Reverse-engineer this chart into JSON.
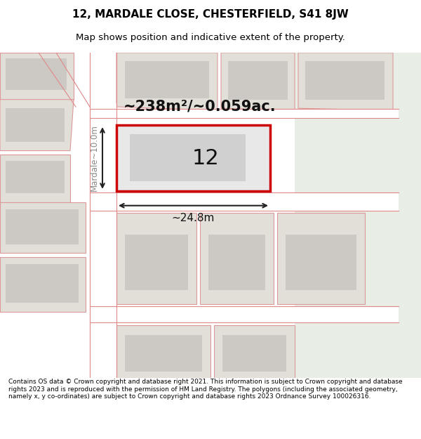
{
  "title_line1": "12, MARDALE CLOSE, CHESTERFIELD, S41 8JW",
  "title_line2": "Map shows position and indicative extent of the property.",
  "footer_text": "Contains OS data © Crown copyright and database right 2021. This information is subject to Crown copyright and database rights 2023 and is reproduced with the permission of HM Land Registry. The polygons (including the associated geometry, namely x, y co-ordinates) are subject to Crown copyright and database rights 2023 Ordnance Survey 100026316.",
  "map_bg": "#f5f3ef",
  "plot_outline_color": "#cc0000",
  "dim_arrow_color": "#222222",
  "area_text": "~238m²/~0.059ac.",
  "width_label": "~24.8m",
  "height_label": "Mardale~10.0m",
  "plot_number": "12"
}
